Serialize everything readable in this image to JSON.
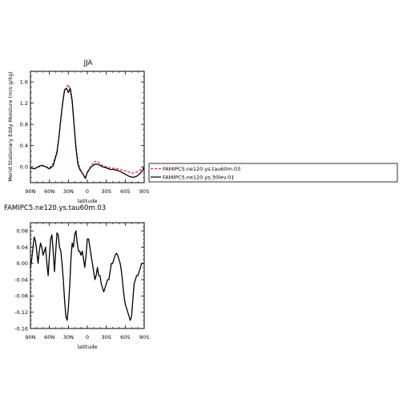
{
  "chart_data": [
    {
      "type": "line",
      "title": "JJA",
      "xlabel": "latitude",
      "ylabel": "Merid Stationary Eddy Moisture (m/s g/kg)",
      "xlim": [
        90,
        -90
      ],
      "ylim": [
        -0.3,
        1.8
      ],
      "xticks": [
        90,
        60,
        30,
        0,
        -30,
        -60,
        -90
      ],
      "xtick_labels": [
        "90N",
        "60N",
        "30N",
        "0",
        "30S",
        "60S",
        "90S"
      ],
      "yticks": [
        0.0,
        0.4,
        0.8,
        1.2,
        1.6
      ],
      "ytick_labels": [
        "0.0",
        "0.4",
        "0.8",
        "1.2",
        "1.6"
      ],
      "grid": false,
      "legend_position": "right",
      "series": [
        {
          "name": "FAMIPC5.ne120.ys.tau60m.03",
          "color": "#e8292b",
          "dash": "dashed",
          "x": [
            90,
            84,
            78,
            72,
            66,
            60,
            54,
            48,
            45,
            42,
            39,
            36,
            33,
            30,
            27,
            24,
            21,
            18,
            15,
            12,
            9,
            6,
            3,
            0,
            -3,
            -6,
            -9,
            -12,
            -15,
            -18,
            -21,
            -24,
            -30,
            -36,
            -42,
            -48,
            -54,
            -60,
            -66,
            -72,
            -78,
            -84,
            -90
          ],
          "y": [
            -0.02,
            -0.04,
            -0.01,
            0.02,
            0.0,
            -0.02,
            0.06,
            0.3,
            0.55,
            0.9,
            1.2,
            1.45,
            1.5,
            1.55,
            1.45,
            1.2,
            0.8,
            0.4,
            0.1,
            -0.02,
            -0.1,
            -0.15,
            -0.2,
            -0.12,
            -0.05,
            0.02,
            0.06,
            0.1,
            0.1,
            0.08,
            0.05,
            0.02,
            0.0,
            -0.02,
            -0.03,
            -0.04,
            -0.06,
            -0.08,
            -0.1,
            -0.12,
            -0.1,
            -0.06,
            0.0
          ]
        },
        {
          "name": "FAMIPC5.ne120.ys.30lev.01",
          "color": "#000000",
          "dash": "solid",
          "x": [
            90,
            84,
            78,
            72,
            66,
            60,
            54,
            48,
            45,
            42,
            39,
            36,
            33,
            30,
            27,
            24,
            21,
            18,
            15,
            12,
            9,
            6,
            3,
            0,
            -3,
            -6,
            -9,
            -12,
            -15,
            -18,
            -21,
            -24,
            -30,
            -36,
            -42,
            -48,
            -54,
            -60,
            -66,
            -72,
            -78,
            -84,
            -90
          ],
          "y": [
            -0.02,
            -0.04,
            0.0,
            0.03,
            0.0,
            -0.04,
            0.02,
            0.27,
            0.55,
            0.9,
            1.2,
            1.45,
            1.48,
            1.4,
            1.48,
            1.25,
            0.8,
            0.35,
            0.05,
            -0.05,
            -0.1,
            -0.16,
            -0.22,
            -0.1,
            -0.05,
            0.0,
            0.02,
            0.05,
            0.05,
            0.04,
            0.02,
            0.0,
            -0.02,
            -0.05,
            -0.05,
            -0.07,
            -0.1,
            -0.14,
            -0.18,
            -0.2,
            -0.18,
            -0.12,
            -0.02
          ]
        }
      ]
    },
    {
      "type": "line",
      "title": "FAMIPC5.ne120.ys.tau60m.03",
      "xlabel": "latitude",
      "ylabel": "",
      "xlim": [
        90,
        -90
      ],
      "ylim": [
        -0.16,
        0.1
      ],
      "xticks": [
        90,
        60,
        30,
        0,
        -30,
        -60,
        -90
      ],
      "xtick_labels": [
        "90N",
        "60N",
        "30N",
        "0",
        "30S",
        "60S",
        "90S"
      ],
      "yticks": [
        -0.16,
        -0.12,
        -0.08,
        -0.04,
        0.0,
        0.04,
        0.08
      ],
      "ytick_labels": [
        "-0.16",
        "-0.12",
        "-0.08",
        "-0.04",
        "0.00",
        "0.04",
        "0.08"
      ],
      "grid": false,
      "series": [
        {
          "color": "#000000",
          "dash": "solid",
          "x": [
            90,
            88,
            86,
            84,
            82,
            80,
            78,
            76,
            74,
            72,
            70,
            68,
            66,
            64,
            62,
            60,
            58,
            56,
            54,
            52,
            50,
            48,
            46,
            44,
            42,
            40,
            38,
            36,
            34,
            32,
            30,
            28,
            26,
            24,
            22,
            20,
            18,
            16,
            14,
            12,
            10,
            8,
            6,
            4,
            2,
            0,
            -2,
            -4,
            -6,
            -8,
            -10,
            -12,
            -14,
            -16,
            -18,
            -20,
            -22,
            -24,
            -26,
            -28,
            -30,
            -32,
            -34,
            -36,
            -38,
            -40,
            -42,
            -44,
            -46,
            -48,
            -50,
            -52,
            -54,
            -56,
            -58,
            -60,
            -62,
            -64,
            -66,
            -68,
            -70,
            -72,
            -74,
            -76,
            -78,
            -80,
            -82,
            -84,
            -86,
            -88,
            -90
          ],
          "y": [
            -0.01,
            0.01,
            0.04,
            0.065,
            0.055,
            0.03,
            0.0,
            0.03,
            0.05,
            0.04,
            0.02,
            0.03,
            0.04,
            0.0,
            -0.03,
            0.02,
            0.06,
            0.07,
            0.03,
            -0.02,
            0.03,
            0.075,
            0.07,
            0.04,
            0.03,
            0.0,
            -0.04,
            -0.09,
            -0.13,
            -0.14,
            -0.11,
            -0.06,
            0.01,
            0.05,
            0.04,
            0.07,
            0.08,
            0.05,
            0.03,
            0.03,
            0.02,
            0.03,
            0.01,
            -0.01,
            0.02,
            0.06,
            0.06,
            0.04,
            0.02,
            0.0,
            -0.02,
            -0.04,
            -0.03,
            -0.01,
            -0.03,
            -0.03,
            -0.05,
            -0.06,
            -0.07,
            -0.06,
            -0.05,
            -0.04,
            -0.04,
            -0.02,
            0.0,
            0.0,
            0.01,
            0.02,
            0.025,
            0.02,
            0.01,
            0.0,
            -0.02,
            -0.05,
            -0.08,
            -0.1,
            -0.11,
            -0.12,
            -0.13,
            -0.14,
            -0.13,
            -0.09,
            -0.05,
            -0.04,
            -0.03,
            -0.03,
            -0.02,
            -0.01,
            0.0,
            0.0,
            0.0
          ]
        }
      ]
    }
  ]
}
